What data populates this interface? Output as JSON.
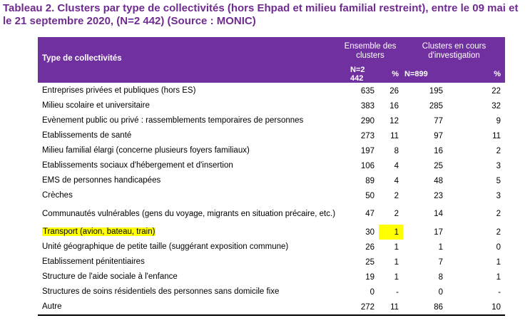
{
  "title": "Tableau 2. Clusters par type de collectivités (hors Ehpad et milieu familial restreint), entre le 09 mai et le 21 septembre 2020, (N=2 442) (Source : MONIC)",
  "table": {
    "header": {
      "name": "Type de collectivités",
      "group1": "Ensemble des clusters",
      "group2": "Clusters en cours d'investigation",
      "n1": "N=2 442",
      "p1": "%",
      "n2": "N=899",
      "p2": "%"
    },
    "rows": [
      {
        "name": "Entreprises privées et publiques (hors ES)",
        "n1": "635",
        "p1": "26",
        "n2": "195",
        "p2": "22"
      },
      {
        "name": "Milieu scolaire et universitaire",
        "n1": "383",
        "p1": "16",
        "n2": "285",
        "p2": "32"
      },
      {
        "name": "Evènement public ou privé : rassemblements temporaires de personnes",
        "n1": "290",
        "p1": "12",
        "n2": "77",
        "p2": "9"
      },
      {
        "name": "Etablissements de santé",
        "n1": "273",
        "p1": "11",
        "n2": "97",
        "p2": "11"
      },
      {
        "name": "Milieu familial élargi (concerne plusieurs foyers familiaux)",
        "n1": "197",
        "p1": "8",
        "n2": "16",
        "p2": "2"
      },
      {
        "name": "Etablissements sociaux d'hébergement et d'insertion",
        "n1": "106",
        "p1": "4",
        "n2": "25",
        "p2": "3"
      },
      {
        "name": "EMS de personnes handicapées",
        "n1": "89",
        "p1": "4",
        "n2": "48",
        "p2": "5"
      },
      {
        "name": "Crèches",
        "n1": "50",
        "p1": "2",
        "n2": "23",
        "p2": "3"
      },
      {
        "name": "Communautés vulnérables (gens du voyage, migrants en situation précaire, etc.)",
        "n1": "47",
        "p1": "2",
        "n2": "14",
        "p2": "2"
      },
      {
        "name": "Transport (avion, bateau, train)",
        "n1": "30",
        "p1": "1",
        "n2": "17",
        "p2": "2"
      },
      {
        "name": "Unité géographique de petite taille (suggérant exposition commune)",
        "n1": "26",
        "p1": "1",
        "n2": "1",
        "p2": "0"
      },
      {
        "name": "Etablissement pénitentiaires",
        "n1": "25",
        "p1": "1",
        "n2": "7",
        "p2": "1"
      },
      {
        "name": "Structure de l'aide sociale à l'enfance",
        "n1": "19",
        "p1": "1",
        "n2": "8",
        "p2": "1"
      },
      {
        "name": "Structures de soins résidentiels des personnes sans domicile fixe",
        "n1": "0",
        "p1": "-",
        "n2": "0",
        "p2": "-"
      },
      {
        "name": "Autre",
        "n1": "272",
        "p1": "11",
        "n2": "86",
        "p2": "10"
      }
    ],
    "highlight_color": "#ffff00",
    "header_color": "#7030a0"
  }
}
